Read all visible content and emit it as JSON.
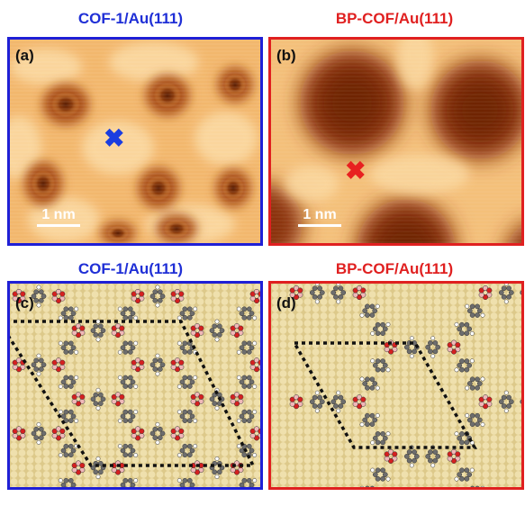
{
  "panels": {
    "a": {
      "title": "COF-1/Au(111)",
      "label": "(a)",
      "scalebar": "1 nm",
      "border_color": "#1f1fd6",
      "marker_color": "#1a3de0"
    },
    "b": {
      "title": "BP-COF/Au(111)",
      "label": "(b)",
      "scalebar": "1 nm",
      "border_color": "#e02020",
      "marker_color": "#e82020"
    },
    "c": {
      "title": "COF-1/Au(111)",
      "label": "(c)",
      "border_color": "#1f1fd6"
    },
    "d": {
      "title": "BP-COF/Au(111)",
      "label": "(d)",
      "border_color": "#e02020"
    }
  },
  "colors": {
    "title_blue": "#1f2fd6",
    "title_red": "#e02020",
    "stm_bright": "#fbd9a2",
    "stm_mid": "#e8a050",
    "stm_dark": "#7a2c06",
    "gold_atom": "#e9d9a0",
    "carbon": "#6d6d6d",
    "oxygen": "#d42020",
    "hydrogen": "#ffffff",
    "boron": "#f0b8b8"
  },
  "marker_glyph": "✖"
}
